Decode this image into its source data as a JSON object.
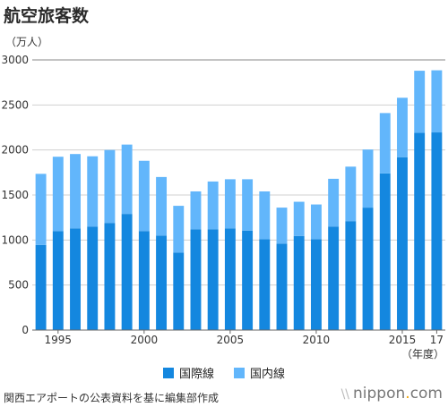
{
  "header": {
    "title": "航空旅客数",
    "unit": "（万人）"
  },
  "footer": {
    "source": "関西エアポートの公表資料を基に編集部作成",
    "brand_main": "nippon",
    "brand_dot": ".",
    "brand_tld": "com",
    "brand_mark": "\\\\"
  },
  "colors": {
    "international": "#1487df",
    "domestic": "#62b6fb",
    "axis": "#666666",
    "grid": "#d0d0d0"
  },
  "chart_data": {
    "type": "bar",
    "stacked": true,
    "title": "航空旅客数",
    "ylabel": "（万人）",
    "xlabel": "（年度）",
    "ylim": [
      0,
      3000
    ],
    "yticks": [
      "0",
      "500",
      "1000",
      "1500",
      "2000",
      "2500",
      "3000"
    ],
    "x_tick_labels": [
      {
        "year": 1995,
        "label": "1995"
      },
      {
        "year": 2000,
        "label": "2000"
      },
      {
        "year": 2005,
        "label": "2005"
      },
      {
        "year": 2010,
        "label": "2010"
      },
      {
        "year": 2015,
        "label": "2015"
      },
      {
        "year": 2017,
        "label": "17"
      }
    ],
    "categories": [
      1994,
      1995,
      1996,
      1997,
      1998,
      1999,
      2000,
      2001,
      2002,
      2003,
      2004,
      2005,
      2006,
      2007,
      2008,
      2009,
      2010,
      2011,
      2012,
      2013,
      2014,
      2015,
      2016,
      2017
    ],
    "series": [
      {
        "name": "国際線",
        "values": [
          945,
          1100,
          1130,
          1150,
          1190,
          1290,
          1100,
          1050,
          860,
          1120,
          1120,
          1130,
          1105,
          1010,
          960,
          1045,
          1010,
          1150,
          1210,
          1360,
          1740,
          1920,
          2190,
          2195
        ]
      },
      {
        "name": "国内線",
        "values": [
          790,
          825,
          825,
          780,
          810,
          770,
          780,
          650,
          520,
          420,
          530,
          545,
          570,
          530,
          400,
          380,
          385,
          530,
          605,
          645,
          670,
          660,
          690,
          690
        ]
      }
    ],
    "legend_position": "bottom"
  }
}
